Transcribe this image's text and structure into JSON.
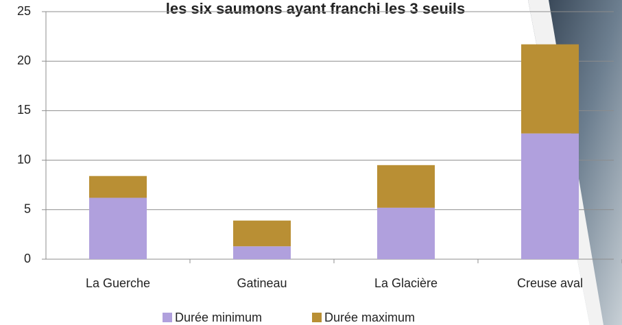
{
  "chart_data": {
    "type": "stacked_bar",
    "title": "les six saumons ayant franchi les 3 seuils",
    "categories": [
      "La Guerche",
      "Gatineau",
      "La Glacière",
      "Creuse aval"
    ],
    "series": [
      {
        "name": "Durée minimum",
        "color": "#b0a0dd",
        "values": [
          6.2,
          1.3,
          5.2,
          12.7
        ]
      },
      {
        "name": "Durée maximum",
        "color": "#b98f34",
        "values": [
          2.2,
          2.6,
          4.3,
          9.0
        ]
      }
    ],
    "ylim": [
      0,
      25
    ],
    "yticks": [
      0,
      5,
      10,
      15,
      20,
      25
    ],
    "grid": true,
    "legend": "bottom"
  }
}
